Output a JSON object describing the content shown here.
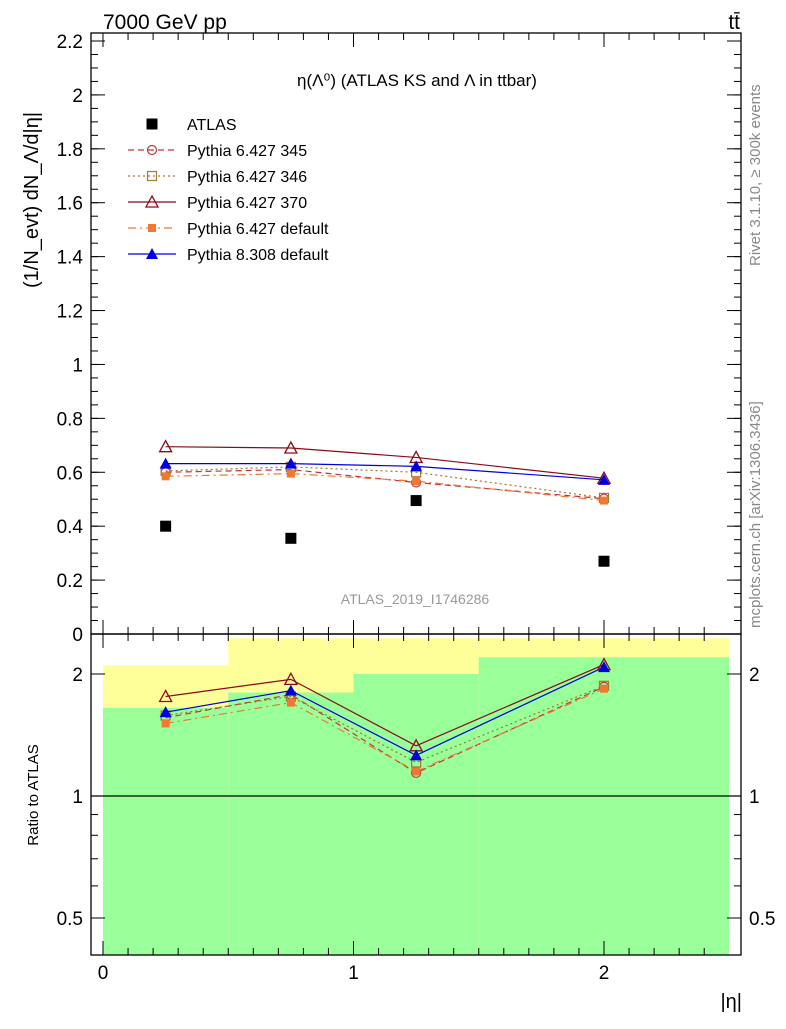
{
  "header": {
    "energy_label": "7000 GeV pp",
    "process_label": "tt̄",
    "side_label_top": "Rivet 3.1.10, ≥ 300k events",
    "side_label_bottom": "mcplots.cern.ch [arXiv:1306.3436]",
    "watermark": "ATLAS_2019_I1746286"
  },
  "colors": {
    "atlas": "#000000",
    "p345": "#c8323c",
    "p346": "#a07830",
    "p370": "#8b0a1a",
    "pdefault": "#f07830",
    "p8": "#0000dd",
    "band_yellow": "#ffff99",
    "band_green": "#99ff99"
  },
  "chart_data": [
    {
      "type": "scatter",
      "title": "η(Λ⁰) (ATLAS KS and Λ in ttbar)",
      "ylabel": "(1/N_evt) dN_Λ/d|η|",
      "xlabel": "|η|",
      "xlim": [
        0,
        2.5
      ],
      "ylim": [
        0,
        2.2
      ],
      "x_ticks": [
        "0",
        "1",
        "2"
      ],
      "y_ticks": [
        "0",
        "0.2",
        "0.4",
        "0.6",
        "0.8",
        "1",
        "1.2",
        "1.4",
        "1.6",
        "1.8",
        "2",
        "2.2"
      ],
      "x": [
        0.25,
        0.75,
        1.25,
        2.0
      ],
      "x_edges": [
        0,
        0.5,
        1.0,
        1.5,
        2.5
      ],
      "legend_position": "top-left",
      "series": [
        {
          "name": "ATLAS",
          "key": "atlas",
          "values": [
            0.4,
            0.355,
            0.495,
            0.27
          ]
        },
        {
          "name": "Pythia 6.427 345",
          "key": "p345",
          "values": [
            0.6,
            0.61,
            0.562,
            0.502
          ]
        },
        {
          "name": "Pythia 6.427 346",
          "key": "p346",
          "values": [
            0.605,
            0.62,
            0.6,
            0.505
          ]
        },
        {
          "name": "Pythia 6.427 370",
          "key": "p370",
          "values": [
            0.695,
            0.69,
            0.655,
            0.578
          ]
        },
        {
          "name": "Pythia 6.427 default",
          "key": "pdefault",
          "values": [
            0.585,
            0.595,
            0.567,
            0.495
          ]
        },
        {
          "name": "Pythia 8.308 default",
          "key": "p8",
          "values": [
            0.632,
            0.632,
            0.622,
            0.572
          ]
        }
      ]
    },
    {
      "type": "line",
      "ylabel": "Ratio to ATLAS",
      "xlabel": "|η|",
      "log_y": true,
      "ylim": [
        0.35,
        2.45
      ],
      "y_ticks": [
        "0.5",
        "1",
        "2"
      ],
      "x_ticks": [
        "0",
        "1",
        "2"
      ],
      "x": [
        0.25,
        0.75,
        1.25,
        2.0
      ],
      "uncertainty_bands": {
        "x_edges": [
          0,
          0.5,
          1.0,
          1.5,
          2.5
        ],
        "yellow": [
          [
            0.38,
            2.1
          ],
          [
            0.35,
            2.45
          ],
          [
            0.35,
            2.45
          ],
          [
            0.35,
            2.45
          ]
        ],
        "green": [
          [
            0.4,
            1.65
          ],
          [
            0.35,
            1.8
          ],
          [
            0.35,
            2.0
          ],
          [
            0.35,
            2.2
          ]
        ]
      },
      "series": [
        {
          "name": "Pythia 6.427 345",
          "key": "p345",
          "values": [
            1.56,
            1.78,
            1.14,
            1.86
          ]
        },
        {
          "name": "Pythia 6.427 346",
          "key": "p346",
          "values": [
            1.58,
            1.76,
            1.21,
            1.87
          ]
        },
        {
          "name": "Pythia 6.427 370",
          "key": "p370",
          "values": [
            1.76,
            1.94,
            1.33,
            2.11
          ]
        },
        {
          "name": "Pythia 6.427 default",
          "key": "pdefault",
          "values": [
            1.51,
            1.7,
            1.15,
            1.84
          ]
        },
        {
          "name": "Pythia 8.308 default",
          "key": "p8",
          "values": [
            1.61,
            1.82,
            1.26,
            2.08
          ]
        }
      ]
    }
  ]
}
